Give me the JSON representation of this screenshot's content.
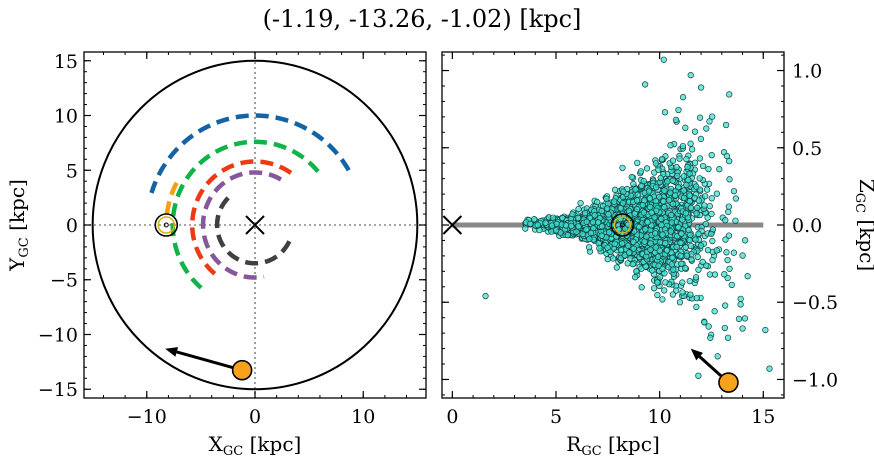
{
  "title": "(-1.19, -13.26, -1.02) [kpc]",
  "chart_data": [
    {
      "panel": "left",
      "type": "line",
      "xlabel": "X",
      "xlabel_sub": "GC",
      "xlabel_unit": " [kpc]",
      "ylabel": "Y",
      "ylabel_sub": "GC",
      "ylabel_unit": " [kpc]",
      "xlim": [
        -15.8,
        15.8
      ],
      "ylim": [
        -15.8,
        15.8
      ],
      "xticks": [
        -10,
        0,
        10
      ],
      "yticks": [
        -15,
        -10,
        -5,
        0,
        5,
        10,
        15
      ],
      "xtick_labels": [
        "−10",
        "0",
        "10"
      ],
      "ytick_labels": [
        "−15",
        "−10",
        "−5",
        "0",
        "5",
        "10",
        "15"
      ],
      "boundary_circle_radius": 15,
      "galactic_center": [
        0,
        0
      ],
      "sun": [
        -8.2,
        0
      ],
      "object": [
        -1.19,
        -13.26
      ],
      "motion_arrow_to": [
        -8.3,
        -11.3
      ],
      "arms": [
        {
          "color": "#1463a5",
          "radius": 10.0,
          "from_deg": 30,
          "to_deg": 163
        },
        {
          "color": "#10b347",
          "radius": 7.6,
          "from_deg": 40,
          "to_deg": 233
        },
        {
          "color": "#f6a10b",
          "radius": 8.2,
          "from_deg": 152,
          "to_deg": 173
        },
        {
          "color": "#ee3a14",
          "radius": 5.8,
          "from_deg": 55,
          "to_deg": 235
        },
        {
          "color": "#86579b",
          "radius": 4.8,
          "from_deg": 60,
          "to_deg": 280
        },
        {
          "color": "#404040",
          "radius": 3.5,
          "from_deg": 135,
          "to_deg": 335
        }
      ]
    },
    {
      "panel": "right",
      "type": "scatter",
      "xlabel": "R",
      "xlabel_sub": "GC",
      "xlabel_unit": " [kpc]",
      "ylabel": "Z",
      "ylabel_sub": "GC",
      "ylabel_unit": " [kpc]",
      "xlim": [
        -0.5,
        16.0
      ],
      "ylim": [
        -1.12,
        1.12
      ],
      "xticks": [
        0,
        5,
        10,
        15
      ],
      "yticks": [
        -1.0,
        -0.5,
        0.0,
        0.5,
        1.0
      ],
      "xtick_labels": [
        "0",
        "5",
        "10",
        "15"
      ],
      "ytick_labels": [
        "−1.0",
        "−0.5",
        "0.0",
        "0.5",
        "1.0"
      ],
      "disk_line": {
        "from": 0,
        "to": 15,
        "z": 0
      },
      "galactic_center": [
        0,
        0
      ],
      "sun": [
        8.2,
        0
      ],
      "object": [
        13.32,
        -1.02
      ],
      "motion_arrow_to": [
        11.5,
        -0.8
      ],
      "point_color": "#40e0d0",
      "sample_points": [
        [
          1.6,
          -0.46
        ],
        [
          10.2,
          1.07
        ],
        [
          11.5,
          0.97
        ],
        [
          9.3,
          0.91
        ],
        [
          12.0,
          0.89
        ],
        [
          14.0,
          -0.67
        ],
        [
          13.3,
          -0.73
        ],
        [
          12.8,
          -0.85
        ],
        [
          15.1,
          -0.68
        ],
        [
          15.3,
          -0.93
        ]
      ]
    }
  ]
}
